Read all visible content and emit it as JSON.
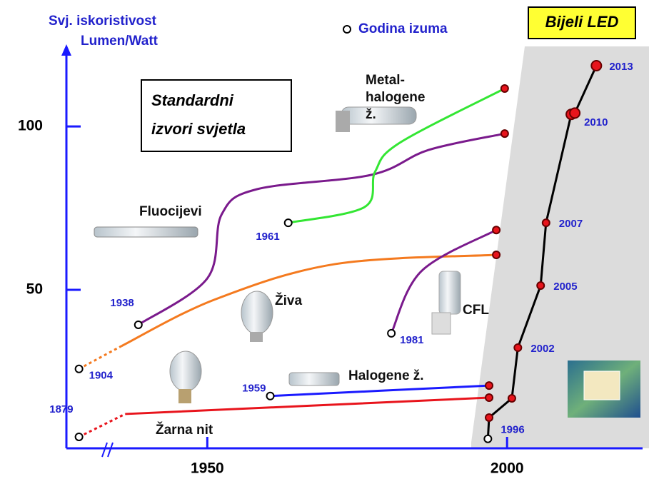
{
  "chart_data": {
    "type": "line",
    "ylabel": [
      "Svj. iskoristivost",
      "Lumen/Watt"
    ],
    "legend": "Godina izuma",
    "annotation": [
      "Standardni",
      "izvori svjetla"
    ],
    "xlim": [
      1926.5,
      2022.6
    ],
    "ylim": [
      1.5,
      123.4
    ],
    "xticks": [
      1950,
      2000
    ],
    "yticks": [
      50,
      100
    ],
    "series": [
      {
        "name": "Žarna nit",
        "color": "#e8141c",
        "dotted_start": true,
        "start_label": "1879",
        "x": [
          1928.6,
          1936.3,
          1997.0
        ],
        "values": [
          5.0,
          12.0,
          17.0
        ]
      },
      {
        "name": "Halogene ž.",
        "color": "#1a1aff",
        "start_label": "1959",
        "x": [
          1960.5,
          1997.0
        ],
        "values": [
          17.5,
          20.7
        ]
      },
      {
        "name": "Živa",
        "color": "#f47a1f",
        "dotted_start": true,
        "start_label": "1904",
        "x": [
          1928.6,
          1935.7,
          1951.2,
          1971.4,
          1998.2
        ],
        "values": [
          25.8,
          32.8,
          47.0,
          57.9,
          60.7
        ]
      },
      {
        "name": "Fluocijevi",
        "color": "#7a1a8c",
        "start_label": "1938",
        "x": [
          1938.5,
          1950.0,
          1952.4,
          1958.3,
          1977.4,
          1986.9,
          1999.6
        ],
        "values": [
          39.3,
          53.5,
          73.1,
          80.8,
          85.2,
          92.8,
          97.8
        ]
      },
      {
        "name": "Metal-halogene ž.",
        "color": "#33e633",
        "start_label": "1961",
        "x": [
          1963.5,
          1976.2,
          1978.0,
          1982.1,
          1999.6
        ],
        "values": [
          70.5,
          75.3,
          86.2,
          95.0,
          111.6
        ]
      },
      {
        "name": "CFL",
        "color": "#7a1a8c",
        "start_label": "1981",
        "x": [
          1980.7,
          1985.7,
          1998.2
        ],
        "values": [
          36.7,
          55.7,
          68.3
        ]
      },
      {
        "name": "Bijeli LED",
        "color": "#000000",
        "x": [
          1996.8,
          1997.0,
          2000.8,
          2001.8,
          2005.6,
          2006.5,
          2010.7,
          2011.3,
          2014.9
        ],
        "values": [
          4.4,
          10.9,
          16.8,
          32.3,
          51.3,
          70.5,
          103.7,
          104.1,
          118.6
        ],
        "point_labels": [
          "1996",
          null,
          null,
          "2002",
          "2005",
          "2007",
          "2010",
          null,
          "2013"
        ]
      }
    ]
  }
}
